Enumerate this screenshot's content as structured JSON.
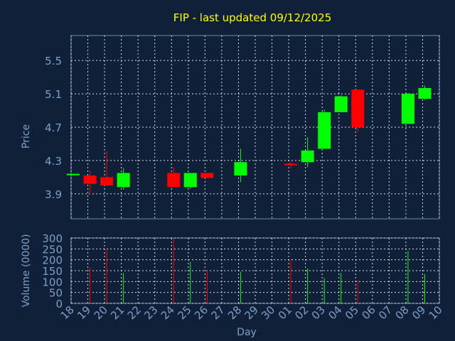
{
  "chart_data": [
    {
      "type": "candlestick",
      "title": "FIP - last updated 09/12/2025",
      "ylabel": "Price",
      "ylim": [
        3.6,
        5.8
      ],
      "yticks": [
        "3.9",
        "4.3",
        "4.7",
        "5.1",
        "5.5"
      ],
      "grid": true,
      "up_color": "#00ff00",
      "down_color": "#ff0000",
      "candles": [
        {
          "day": "18",
          "open": 4.14,
          "high": 4.14,
          "low": 4.14,
          "close": 4.14
        },
        {
          "day": "19",
          "open": 4.12,
          "high": 4.18,
          "low": 3.89,
          "close": 4.02
        },
        {
          "day": "20",
          "open": 4.1,
          "high": 4.41,
          "low": 4.0,
          "close": 4.0
        },
        {
          "day": "21",
          "open": 3.98,
          "high": 4.21,
          "low": 3.95,
          "close": 4.15
        },
        {
          "day": "24",
          "open": 4.15,
          "high": 4.22,
          "low": 3.98,
          "close": 3.98
        },
        {
          "day": "25",
          "open": 3.98,
          "high": 4.15,
          "low": 3.96,
          "close": 4.15
        },
        {
          "day": "26",
          "open": 4.15,
          "high": 4.15,
          "low": 4.09,
          "close": 4.09
        },
        {
          "day": "28",
          "open": 4.12,
          "high": 4.44,
          "low": 4.04,
          "close": 4.28
        },
        {
          "day": "01",
          "open": 4.26,
          "high": 4.29,
          "low": 4.21,
          "close": 4.25
        },
        {
          "day": "02",
          "open": 4.28,
          "high": 4.58,
          "low": 4.22,
          "close": 4.42
        },
        {
          "day": "03",
          "open": 4.44,
          "high": 4.91,
          "low": 4.44,
          "close": 4.88
        },
        {
          "day": "04",
          "open": 4.88,
          "high": 5.08,
          "low": 4.88,
          "close": 5.07
        },
        {
          "day": "05",
          "open": 5.15,
          "high": 5.15,
          "low": 4.64,
          "close": 4.7
        },
        {
          "day": "08",
          "open": 4.74,
          "high": 5.11,
          "low": 4.74,
          "close": 5.1
        },
        {
          "day": "09",
          "open": 5.04,
          "high": 5.2,
          "low": 5.03,
          "close": 5.17
        }
      ]
    },
    {
      "type": "bar",
      "ylabel": "Volume (0000)",
      "ylim": [
        0,
        300
      ],
      "yticks": [
        "0",
        "50",
        "100",
        "150",
        "200",
        "250",
        "300"
      ],
      "categories": [
        "18",
        "19",
        "20",
        "21",
        "22",
        "23",
        "24",
        "25",
        "26",
        "27",
        "28",
        "29",
        "30",
        "01",
        "02",
        "03",
        "04",
        "05",
        "06",
        "07",
        "08",
        "09",
        "10"
      ],
      "xlabel": "Day",
      "volumes": [
        {
          "day": "19",
          "value": 165,
          "color": "#ff0000"
        },
        {
          "day": "20",
          "value": 245,
          "color": "#ff0000"
        },
        {
          "day": "21",
          "value": 140,
          "color": "#00ff00"
        },
        {
          "day": "24",
          "value": 295,
          "color": "#ff0000"
        },
        {
          "day": "25",
          "value": 190,
          "color": "#00ff00"
        },
        {
          "day": "26",
          "value": 150,
          "color": "#ff0000"
        },
        {
          "day": "28",
          "value": 145,
          "color": "#00ff00"
        },
        {
          "day": "01",
          "value": 200,
          "color": "#ff0000"
        },
        {
          "day": "02",
          "value": 160,
          "color": "#00ff00"
        },
        {
          "day": "03",
          "value": 115,
          "color": "#00ff00"
        },
        {
          "day": "04",
          "value": 140,
          "color": "#00ff00"
        },
        {
          "day": "05",
          "value": 105,
          "color": "#ff0000"
        },
        {
          "day": "08",
          "value": 240,
          "color": "#00ff00"
        },
        {
          "day": "09",
          "value": 135,
          "color": "#00ff00"
        }
      ]
    }
  ]
}
